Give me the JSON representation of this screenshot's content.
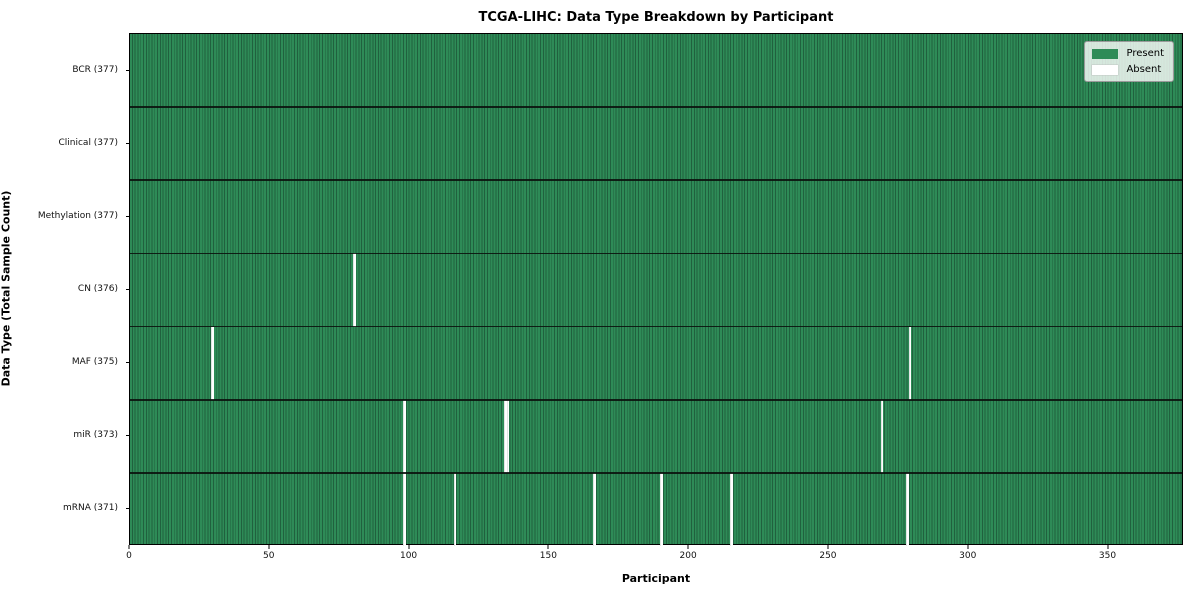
{
  "chart_data": {
    "type": "heatmap",
    "title": "TCGA-LIHC: Data Type Breakdown by Participant",
    "xlabel": "Participant",
    "ylabel": "Data Type (Total Sample Count)",
    "x_ticks": [
      0,
      50,
      100,
      150,
      200,
      250,
      300,
      350
    ],
    "x_max": 377,
    "grid": false,
    "legend_position": "upper right",
    "legend_labels": [
      "Present",
      "Absent"
    ],
    "colors": {
      "present": "#2e8b57",
      "present_edge": "#20613e",
      "absent": "#ffffff"
    },
    "rows": [
      {
        "data_type": "BCR",
        "label": "BCR (377)",
        "present_count": 377,
        "absent_participants": []
      },
      {
        "data_type": "Clinical",
        "label": "Clinical (377)",
        "present_count": 377,
        "absent_participants": []
      },
      {
        "data_type": "Methylation",
        "label": "Methylation (377)",
        "present_count": 377,
        "absent_participants": []
      },
      {
        "data_type": "CN",
        "label": "CN (376)",
        "present_count": 376,
        "absent_participants": [
          80
        ]
      },
      {
        "data_type": "MAF",
        "label": "MAF (375)",
        "present_count": 375,
        "absent_participants": [
          29,
          279
        ]
      },
      {
        "data_type": "miR",
        "label": "miR (373)",
        "present_count": 373,
        "absent_participants": [
          98,
          134,
          135,
          269
        ]
      },
      {
        "data_type": "mRNA",
        "label": "mRNA (371)",
        "present_count": 371,
        "absent_participants": [
          98,
          116,
          166,
          190,
          215,
          278
        ]
      }
    ]
  }
}
